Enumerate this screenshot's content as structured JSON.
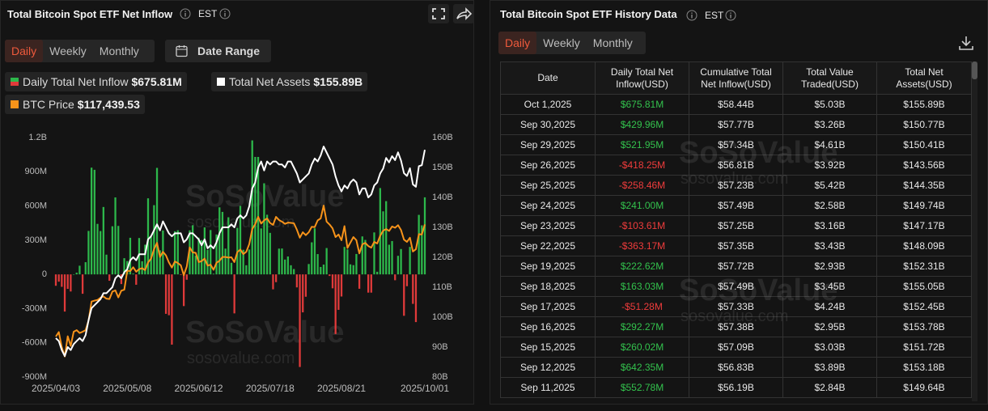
{
  "chart_data": {
    "type": "bar",
    "title": "Total Bitcoin Spot ETF Net Inflow",
    "timezone": "EST",
    "tabs": [
      "Daily",
      "Weekly",
      "Monthly"
    ],
    "date_range": "Date Range",
    "watermark": [
      "SoSoValue",
      "sosovalue.com"
    ],
    "categories": [
      "2025/04/03",
      null,
      null,
      null,
      null,
      null,
      null,
      null,
      null,
      null,
      null,
      null,
      null,
      null,
      null,
      null,
      null,
      null,
      null,
      null,
      null,
      null,
      null,
      null,
      "2025/05/08",
      null,
      null,
      null,
      null,
      null,
      null,
      null,
      null,
      null,
      null,
      null,
      null,
      null,
      null,
      null,
      null,
      null,
      null,
      null,
      null,
      null,
      null,
      null,
      "2025/06/12",
      null,
      null,
      null,
      null,
      null,
      null,
      null,
      null,
      null,
      null,
      null,
      null,
      null,
      null,
      null,
      null,
      null,
      null,
      null,
      null,
      null,
      null,
      null,
      "2025/07/18",
      null,
      null,
      null,
      null,
      null,
      null,
      null,
      null,
      null,
      null,
      null,
      null,
      null,
      null,
      null,
      null,
      null,
      null,
      null,
      null,
      null,
      null,
      null,
      "2025/08/21",
      null,
      null,
      null,
      null,
      null,
      null,
      null,
      null,
      null,
      null,
      null,
      null,
      null,
      null,
      null,
      null,
      null,
      null,
      null,
      null,
      null,
      null,
      null,
      null,
      null,
      null,
      null,
      "2025/10/01"
    ],
    "series": [
      {
        "name": "Daily Total Net Inflow",
        "legend_value": "$675.81M",
        "type": "bar",
        "color": "#2db84b",
        "negative_color": "#e03a3a",
        "values": [
          -100,
          -64,
          -109,
          -326,
          -127,
          -150,
          1,
          15,
          76,
          -170,
          107,
          381,
          936,
          917,
          443,
          380,
          591,
          173,
          -56,
          422,
          675,
          425,
          -85,
          142,
          117,
          321,
          7,
          -91,
          319,
          115,
          260,
          667,
          329,
          607,
          934,
          211,
          385,
          -346,
          -358,
          -616,
          378,
          387,
          -5,
          -278,
          -47,
          386,
          431,
          164,
          322,
          301,
          412,
          216,
          389,
          6,
          350,
          588,
          548,
          226,
          501,
          102,
          -342,
          408,
          601,
          216,
          80,
          218,
          1175,
          1030,
          1030,
          403,
          799,
          523,
          364,
          -131,
          -68,
          226,
          227,
          130,
          157,
          80,
          47,
          -114,
          -812,
          -333,
          -196,
          91,
          281,
          404,
          178,
          65,
          86,
          231,
          -14,
          -122,
          -523,
          -311,
          -194,
          241,
          219,
          88,
          81,
          179,
          -126,
          333,
          302,
          -160,
          -160,
          368,
          23,
          757,
          552.78,
          642.35,
          260.02,
          292.27,
          -51.28,
          163.03,
          222.62,
          -363.17,
          -103.61,
          241.0,
          -258.46,
          -418.25,
          521.95,
          429.96,
          675.81
        ]
      },
      {
        "name": "Total Net Assets",
        "legend_value": "$155.89B",
        "type": "line",
        "axis": "y2",
        "color": "#ffffff",
        "values": [
          93,
          92,
          89,
          87,
          90,
          89,
          91,
          92,
          93,
          92,
          94,
          99,
          103,
          104,
          105,
          106,
          108,
          108,
          109,
          110,
          113,
          114,
          113,
          115,
          116,
          119,
          120,
          119,
          121,
          121,
          121,
          126,
          127,
          129,
          131,
          129,
          132,
          130,
          128,
          127,
          128,
          128,
          128,
          125,
          126,
          128,
          128,
          127,
          126,
          124,
          126,
          123,
          124,
          123,
          125,
          128,
          130,
          130,
          130,
          131,
          130,
          133,
          134,
          133,
          134,
          137,
          143,
          145,
          150,
          152,
          149,
          152,
          151,
          152,
          152,
          151,
          151,
          150,
          152,
          152,
          150,
          148,
          145,
          146,
          147,
          148,
          151,
          153,
          152,
          154,
          157,
          155,
          153,
          151,
          147,
          144,
          142,
          144,
          143,
          145,
          146,
          145,
          141,
          143,
          143,
          140,
          141,
          144,
          145,
          148,
          149.64,
          153.18,
          151.72,
          153.78,
          152.45,
          155.05,
          152.31,
          148.09,
          147.17,
          149.74,
          144.35,
          143.56,
          150.41,
          150.77,
          155.89
        ]
      },
      {
        "name": "BTC Price",
        "legend_value": "$117,439.53",
        "type": "line",
        "axis": "y3",
        "color": "#f7931a",
        "values": [
          82500,
          83900,
          79200,
          76300,
          82600,
          79600,
          84000,
          84500,
          83600,
          84000,
          84500,
          87500,
          93400,
          93700,
          93900,
          94600,
          95000,
          94300,
          94200,
          96500,
          96900,
          94700,
          96800,
          97100,
          103000,
          102900,
          104100,
          102700,
          103500,
          103800,
          103200,
          105600,
          106800,
          109700,
          111700,
          107300,
          108900,
          107800,
          105600,
          104000,
          105900,
          105400,
          104700,
          101600,
          104300,
          110300,
          108700,
          108600,
          105700,
          106000,
          106800,
          104600,
          104900,
          103300,
          105500,
          106100,
          107300,
          107300,
          107100,
          107200,
          105700,
          108800,
          109600,
          108200,
          108900,
          111300,
          116000,
          117500,
          119800,
          117700,
          118700,
          119300,
          117900,
          117300,
          119800,
          118800,
          118300,
          117600,
          118000,
          117900,
          117800,
          115800,
          113300,
          115000,
          114100,
          115000,
          116700,
          116600,
          118700,
          119300,
          123300,
          118300,
          117400,
          116200,
          113500,
          114300,
          112500,
          116900,
          110100,
          111800,
          113500,
          112500,
          108400,
          111200,
          111700,
          110700,
          110200,
          112000,
          111500,
          113900,
          115500,
          116000,
          115400,
          116800,
          116400,
          117200,
          115700,
          112700,
          112000,
          113300,
          109000,
          109700,
          114400,
          114300,
          117439.53
        ]
      }
    ],
    "ylim": [
      -900,
      1200
    ],
    "yticks": [
      {
        "value": 1200,
        "label": "1.2B"
      },
      {
        "value": 900,
        "label": "900M"
      },
      {
        "value": 600,
        "label": "600M"
      },
      {
        "value": 300,
        "label": "300M"
      },
      0,
      {
        "value": -300,
        "label": "-300M"
      },
      {
        "value": -600,
        "label": "-600M"
      },
      {
        "value": -900,
        "label": "-900M"
      }
    ],
    "y2lim": [
      80,
      160
    ],
    "y2ticks": [
      {
        "value": 160,
        "label": "160B"
      },
      {
        "value": 150,
        "label": "150B"
      },
      {
        "value": 140,
        "label": "140B"
      },
      {
        "value": 130,
        "label": "130B"
      },
      {
        "value": 120,
        "label": "120B"
      },
      {
        "value": 110,
        "label": "110B"
      },
      {
        "value": 100,
        "label": "100B"
      },
      {
        "value": 90,
        "label": "90B"
      },
      {
        "value": 80,
        "label": "80B"
      }
    ],
    "y3lim": [
      69900,
      144500
    ]
  },
  "history": {
    "title": "Total Bitcoin Spot ETF History Data",
    "timezone": "EST",
    "tabs": [
      "Daily",
      "Weekly",
      "Monthly"
    ],
    "columns": [
      "Date",
      "Daily Total Net Inflow(USD)",
      "Cumulative Total Net Inflow(USD)",
      "Total Value Traded(USD)",
      "Total Net Assets(USD)"
    ],
    "rows": [
      [
        "Oct 1,2025",
        "$675.81M",
        "$58.44B",
        "$5.03B",
        "$155.89B"
      ],
      [
        "Sep 30,2025",
        "$429.96M",
        "$57.77B",
        "$3.26B",
        "$150.77B"
      ],
      [
        "Sep 29,2025",
        "$521.95M",
        "$57.34B",
        "$4.61B",
        "$150.41B"
      ],
      [
        "Sep 26,2025",
        "-$418.25M",
        "$56.81B",
        "$3.92B",
        "$143.56B"
      ],
      [
        "Sep 25,2025",
        "-$258.46M",
        "$57.23B",
        "$5.42B",
        "$144.35B"
      ],
      [
        "Sep 24,2025",
        "$241.00M",
        "$57.49B",
        "$2.58B",
        "$149.74B"
      ],
      [
        "Sep 23,2025",
        "-$103.61M",
        "$57.25B",
        "$3.16B",
        "$147.17B"
      ],
      [
        "Sep 22,2025",
        "-$363.17M",
        "$57.35B",
        "$3.43B",
        "$148.09B"
      ],
      [
        "Sep 19,2025",
        "$222.62M",
        "$57.72B",
        "$2.93B",
        "$152.31B"
      ],
      [
        "Sep 18,2025",
        "$163.03M",
        "$57.49B",
        "$3.45B",
        "$155.05B"
      ],
      [
        "Sep 17,2025",
        "-$51.28M",
        "$57.33B",
        "$4.24B",
        "$152.45B"
      ],
      [
        "Sep 16,2025",
        "$292.27M",
        "$57.38B",
        "$2.95B",
        "$153.78B"
      ],
      [
        "Sep 15,2025",
        "$260.02M",
        "$57.09B",
        "$3.03B",
        "$151.72B"
      ],
      [
        "Sep 12,2025",
        "$642.35M",
        "$56.83B",
        "$3.89B",
        "$153.18B"
      ],
      [
        "Sep 11,2025",
        "$552.78M",
        "$56.19B",
        "$2.84B",
        "$149.64B"
      ]
    ]
  }
}
